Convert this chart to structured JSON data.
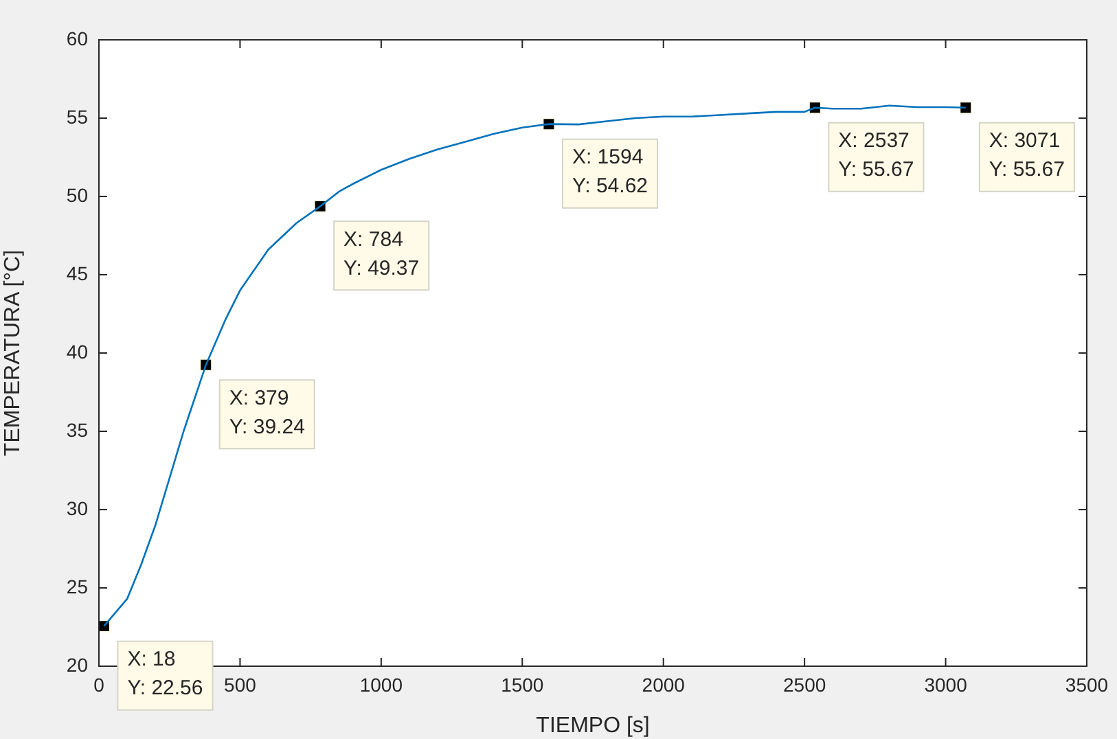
{
  "chart_data": {
    "type": "line",
    "xlabel": "TIEMPO [s]",
    "ylabel": "TEMPERATURA [°C]",
    "xlim": [
      0,
      3500
    ],
    "xticks": [
      0,
      500,
      1000,
      1500,
      2000,
      2500,
      3000,
      3500
    ],
    "ylim": [
      20,
      60
    ],
    "yticks": [
      20,
      25,
      30,
      35,
      40,
      45,
      50,
      55,
      60
    ],
    "grid": false,
    "legend": false,
    "series": [
      {
        "type": "line",
        "color": "#0072bd",
        "marker": "none",
        "x": [
          18,
          100,
          150,
          200,
          250,
          300,
          379,
          450,
          500,
          600,
          700,
          784,
          850,
          900,
          1000,
          1100,
          1200,
          1300,
          1400,
          1500,
          1594,
          1700,
          1800,
          1900,
          2000,
          2100,
          2200,
          2300,
          2400,
          2500,
          2537,
          2600,
          2700,
          2800,
          2900,
          3000,
          3071
        ],
        "values": [
          22.56,
          24.3,
          26.5,
          29,
          32,
          35,
          39.24,
          42.2,
          44,
          46.6,
          48.3,
          49.37,
          50.3,
          50.8,
          51.7,
          52.4,
          53,
          53.5,
          54,
          54.4,
          54.62,
          54.6,
          54.8,
          55,
          55.1,
          55.1,
          55.2,
          55.3,
          55.4,
          55.4,
          55.67,
          55.6,
          55.6,
          55.8,
          55.7,
          55.7,
          55.67
        ]
      },
      {
        "type": "scatter",
        "color": "#000000",
        "marker": "square",
        "x": [
          18,
          379,
          784,
          1594,
          2537,
          3071
        ],
        "values": [
          22.56,
          39.24,
          49.37,
          54.62,
          55.67,
          55.67
        ]
      }
    ],
    "annotations": [
      {
        "text": "X: 18\nY: 22.56",
        "x": 18,
        "y": 22.56
      },
      {
        "text": "X: 379\nY: 39.24",
        "x": 379,
        "y": 39.24
      },
      {
        "text": "X: 784\nY: 49.37",
        "x": 784,
        "y": 49.37
      },
      {
        "text": "X: 1594\nY: 54.62",
        "x": 1594,
        "y": 54.62
      },
      {
        "text": "X: 2537\nY: 55.67",
        "x": 2537,
        "y": 55.67
      },
      {
        "text": "X: 3071\nY: 55.67",
        "x": 3071,
        "y": 55.67
      }
    ]
  }
}
